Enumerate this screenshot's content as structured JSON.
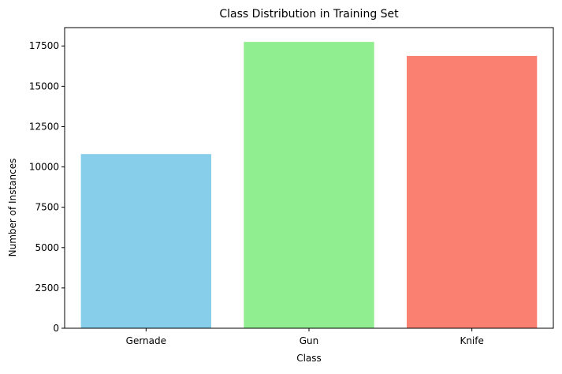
{
  "chart_data": {
    "type": "bar",
    "title": "Class Distribution in Training Set",
    "xlabel": "Class",
    "ylabel": "Number of Instances",
    "categories": [
      "Gernade",
      "Gun",
      "Knife"
    ],
    "values": [
      10800,
      17750,
      16880
    ],
    "colors": [
      "#87ceeb",
      "#90ee90",
      "#fa8072"
    ],
    "ylim": [
      0,
      18637
    ],
    "yticks": [
      0,
      2500,
      5000,
      7500,
      10000,
      12500,
      15000,
      17500
    ],
    "grid": false,
    "legend": "none"
  }
}
